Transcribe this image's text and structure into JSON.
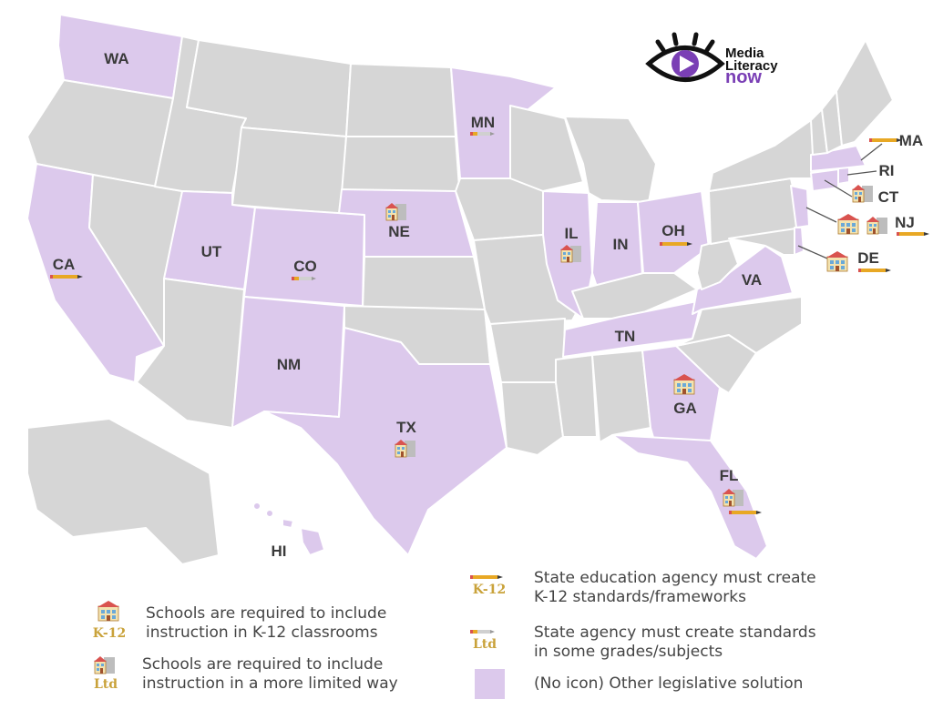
{
  "colors": {
    "featured": "#dcc9ec",
    "other": "#d6d6d6",
    "border": "#ffffff",
    "label": "#3a3a3a",
    "logo_purple": "#7a3fb5"
  },
  "logo": {
    "line1": "Media",
    "line2": "Literacy",
    "line3": "now",
    "icon": "eye-play-icon"
  },
  "state_labels": {
    "WA": "WA",
    "MN": "MN",
    "CA": "CA",
    "UT": "UT",
    "CO": "CO",
    "NE": "NE",
    "IL": "IL",
    "IN": "IN",
    "OH": "OH",
    "VA": "VA",
    "TN": "TN",
    "NM": "NM",
    "TX": "TX",
    "GA": "GA",
    "FL": "FL",
    "HI": "HI",
    "MA": "MA",
    "RI": "RI",
    "CT": "CT",
    "NJ": "NJ",
    "DE": "DE"
  },
  "legend": {
    "school_k12": {
      "text1": "Schools are required to include",
      "text2": "instruction in K-12 classrooms",
      "caption": "K-12",
      "icon": "school-building-icon"
    },
    "school_ltd": {
      "text1": "Schools are required to include",
      "text2": "instruction in a more limited way",
      "caption": "Ltd",
      "icon": "small-school-building-icon"
    },
    "agency_k12": {
      "text1": "State education agency must create",
      "text2": "K-12 standards/frameworks",
      "caption": "K-12",
      "icon": "long-pencil-icon"
    },
    "agency_ltd": {
      "text1": "State agency must create standards",
      "text2": "in some grades/subjects",
      "caption": "Ltd",
      "icon": "short-pencil-icon"
    },
    "other": {
      "text": "(No icon) Other legislative solution",
      "icon": "purple-swatch"
    }
  }
}
